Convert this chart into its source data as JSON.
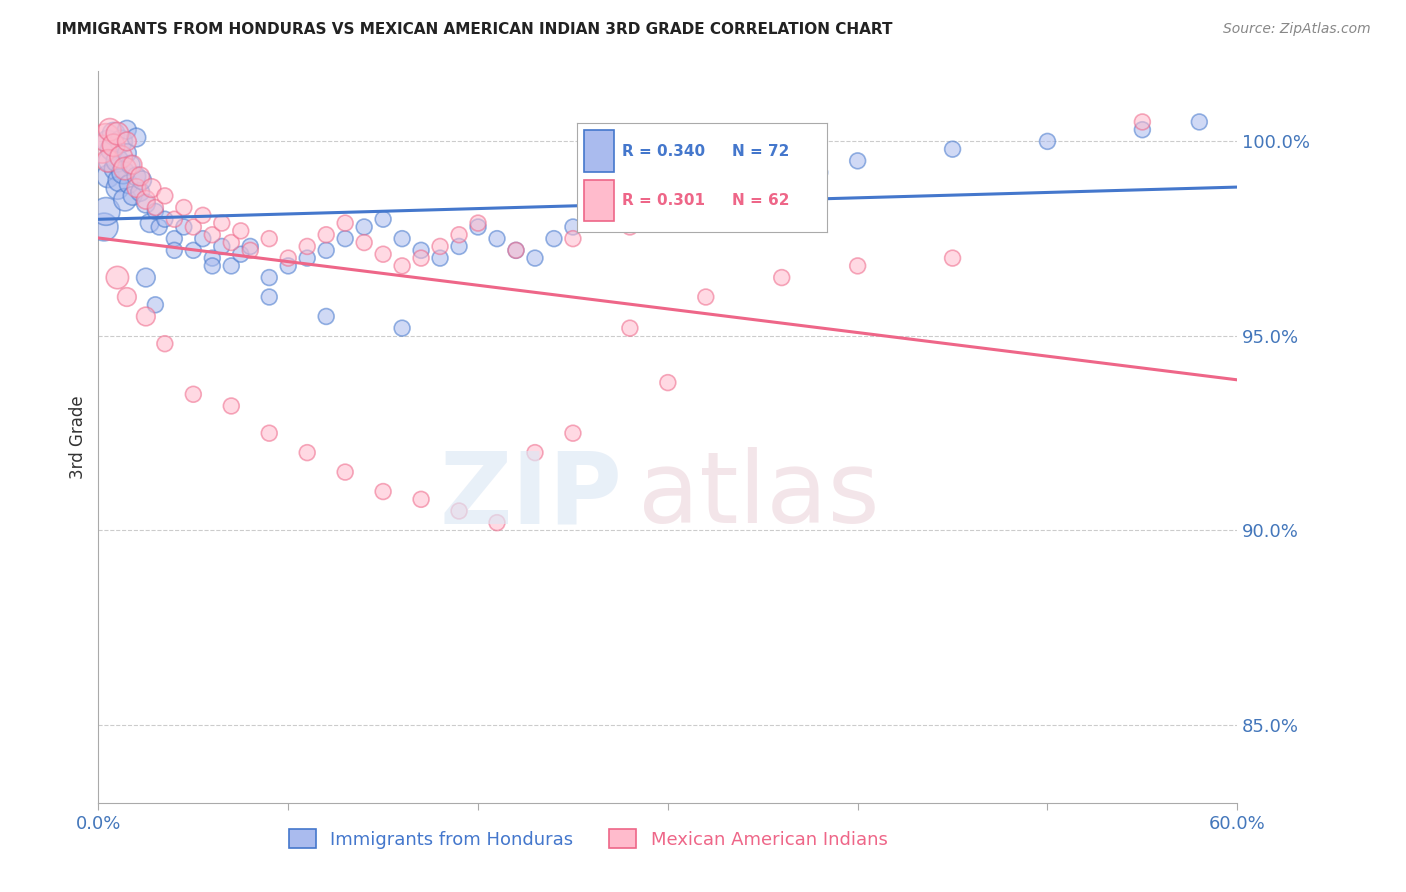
{
  "title": "IMMIGRANTS FROM HONDURAS VS MEXICAN AMERICAN INDIAN 3RD GRADE CORRELATION CHART",
  "source": "Source: ZipAtlas.com",
  "ylabel": "3rd Grade",
  "xlim": [
    0.0,
    60.0
  ],
  "ylim": [
    83.0,
    101.8
  ],
  "yticks": [
    85.0,
    90.0,
    95.0,
    100.0
  ],
  "ytick_labels": [
    "85.0%",
    "90.0%",
    "95.0%",
    "100.0%"
  ],
  "xticks": [
    0.0,
    10.0,
    20.0,
    30.0,
    40.0,
    50.0,
    60.0
  ],
  "xtick_labels": [
    "0.0%",
    "",
    "",
    "",
    "",
    "",
    "60.0%"
  ],
  "r_blue": 0.34,
  "n_blue": 72,
  "r_pink": 0.301,
  "n_pink": 62,
  "color_blue_line": "#4477cc",
  "color_pink_line": "#ee6688",
  "color_blue_fill": "#aabbee",
  "color_pink_fill": "#ffbbcc",
  "tick_color": "#4477bb",
  "grid_color": "#cccccc",
  "blue_x": [
    0.3,
    0.4,
    0.5,
    0.5,
    0.6,
    0.7,
    0.8,
    0.9,
    1.0,
    1.0,
    1.1,
    1.2,
    1.3,
    1.4,
    1.5,
    1.5,
    1.6,
    1.7,
    1.8,
    2.0,
    2.0,
    2.2,
    2.3,
    2.5,
    2.7,
    3.0,
    3.2,
    3.5,
    4.0,
    4.5,
    5.0,
    5.5,
    6.0,
    6.5,
    7.0,
    7.5,
    8.0,
    9.0,
    10.0,
    11.0,
    12.0,
    13.0,
    14.0,
    15.0,
    16.0,
    17.0,
    18.0,
    19.0,
    20.0,
    21.0,
    22.0,
    23.0,
    24.0,
    25.0,
    26.0,
    28.0,
    30.0,
    32.0,
    35.0,
    38.0,
    40.0,
    45.0,
    50.0,
    55.0,
    58.0,
    2.5,
    3.0,
    4.0,
    6.0,
    9.0,
    12.0,
    16.0
  ],
  "blue_y": [
    97.8,
    98.2,
    99.1,
    100.0,
    99.5,
    99.8,
    100.2,
    99.3,
    98.8,
    99.5,
    99.0,
    100.0,
    99.2,
    98.5,
    99.7,
    100.3,
    98.9,
    99.4,
    98.6,
    99.1,
    100.1,
    98.7,
    99.0,
    98.4,
    97.9,
    98.2,
    97.8,
    98.0,
    97.5,
    97.8,
    97.2,
    97.5,
    97.0,
    97.3,
    96.8,
    97.1,
    97.3,
    96.5,
    96.8,
    97.0,
    97.2,
    97.5,
    97.8,
    98.0,
    97.5,
    97.2,
    97.0,
    97.3,
    97.8,
    97.5,
    97.2,
    97.0,
    97.5,
    97.8,
    98.0,
    98.2,
    98.5,
    98.8,
    99.0,
    99.2,
    99.5,
    99.8,
    100.0,
    100.3,
    100.5,
    96.5,
    95.8,
    97.2,
    96.8,
    96.0,
    95.5,
    95.2
  ],
  "pink_x": [
    0.2,
    0.4,
    0.5,
    0.6,
    0.8,
    1.0,
    1.2,
    1.4,
    1.5,
    1.8,
    2.0,
    2.2,
    2.5,
    2.8,
    3.0,
    3.5,
    4.0,
    4.5,
    5.0,
    5.5,
    6.0,
    6.5,
    7.0,
    7.5,
    8.0,
    9.0,
    10.0,
    11.0,
    12.0,
    13.0,
    14.0,
    15.0,
    16.0,
    17.0,
    18.0,
    19.0,
    20.0,
    22.0,
    25.0,
    28.0,
    30.0,
    55.0,
    1.0,
    1.5,
    2.5,
    3.5,
    5.0,
    7.0,
    9.0,
    11.0,
    13.0,
    15.0,
    17.0,
    19.0,
    21.0,
    23.0,
    25.0,
    28.0,
    32.0,
    36.0,
    40.0,
    45.0
  ],
  "pink_y": [
    99.8,
    100.1,
    99.5,
    100.3,
    99.9,
    100.2,
    99.6,
    99.3,
    100.0,
    99.4,
    98.8,
    99.1,
    98.5,
    98.8,
    98.3,
    98.6,
    98.0,
    98.3,
    97.8,
    98.1,
    97.6,
    97.9,
    97.4,
    97.7,
    97.2,
    97.5,
    97.0,
    97.3,
    97.6,
    97.9,
    97.4,
    97.1,
    96.8,
    97.0,
    97.3,
    97.6,
    97.9,
    97.2,
    97.5,
    97.8,
    93.8,
    100.5,
    96.5,
    96.0,
    95.5,
    94.8,
    93.5,
    93.2,
    92.5,
    92.0,
    91.5,
    91.0,
    90.8,
    90.5,
    90.2,
    92.0,
    92.5,
    95.2,
    96.0,
    96.5,
    96.8,
    97.0
  ]
}
